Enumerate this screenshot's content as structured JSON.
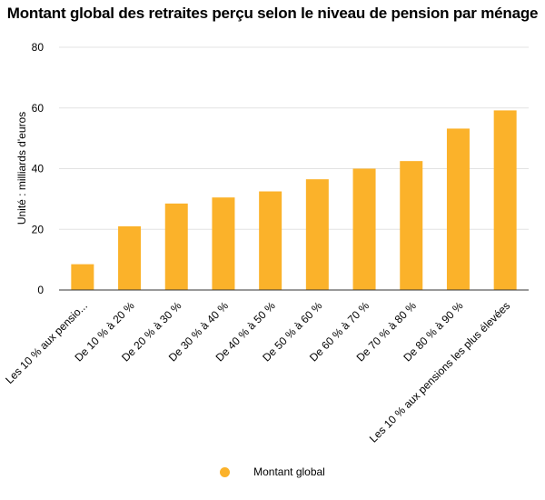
{
  "chart_data": {
    "type": "bar",
    "title": "Montant global des retraites perçu selon le niveau de pension par ménage",
    "ylabel": "Unité : milliards d'euros",
    "xlabel": "",
    "categories": [
      "Les 10 % aux pensio...",
      "De 10 % à 20 %",
      "De 20 % à 30 %",
      "De 30 % à 40 %",
      "De 40 % à 50 %",
      "De 50 % à 60 %",
      "De 60 % à 70 %",
      "De 70 % à 80 %",
      "De 80 % à 90 %",
      "Les 10 % aux pensions les plus élevées"
    ],
    "series": [
      {
        "name": "Montant global",
        "values": [
          8.5,
          21,
          28.5,
          30.5,
          32.5,
          36.5,
          40,
          42.5,
          53.2,
          59.2
        ]
      }
    ],
    "ylim": [
      0,
      80
    ],
    "yticks": [
      0,
      20,
      40,
      60,
      80
    ],
    "grid": true,
    "legend_position": "bottom",
    "bar_color": "#FBB22A"
  }
}
